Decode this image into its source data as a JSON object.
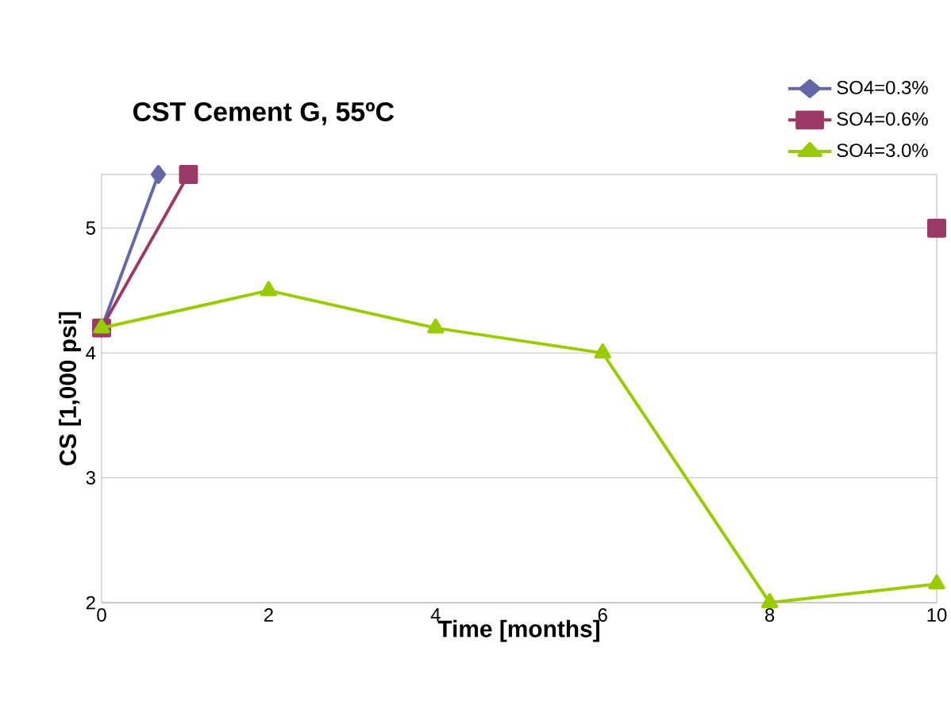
{
  "chart_data": {
    "type": "line",
    "title": "CST Cement G, 55ºC",
    "xlabel": "Time [months]",
    "ylabel": "CS [1,000 psi]",
    "xlim": [
      0,
      10
    ],
    "ylim": [
      2,
      5.43
    ],
    "xticks": [
      0,
      2,
      4,
      6,
      8,
      10
    ],
    "yticks": [
      2,
      3,
      4,
      5
    ],
    "grid": "y",
    "legend": "top right",
    "series": [
      {
        "name": "SO4=0.3%",
        "color": "#6567a8",
        "marker": "diamond",
        "x": [
          0,
          0.68
        ],
        "values": [
          4.2,
          5.43
        ]
      },
      {
        "name": "SO4=0.6%",
        "color": "#9b3a66",
        "marker": "square",
        "x": [
          0,
          1.04,
          5,
          10
        ],
        "values": [
          4.2,
          5.43,
          null,
          5.0
        ]
      },
      {
        "name": "SO4=3.0%",
        "color": "#99cc00",
        "marker": "triangle",
        "x": [
          0,
          2,
          4,
          6,
          8,
          10
        ],
        "values": [
          4.2,
          4.5,
          4.2,
          4.0,
          2.0,
          2.15
        ]
      }
    ]
  }
}
